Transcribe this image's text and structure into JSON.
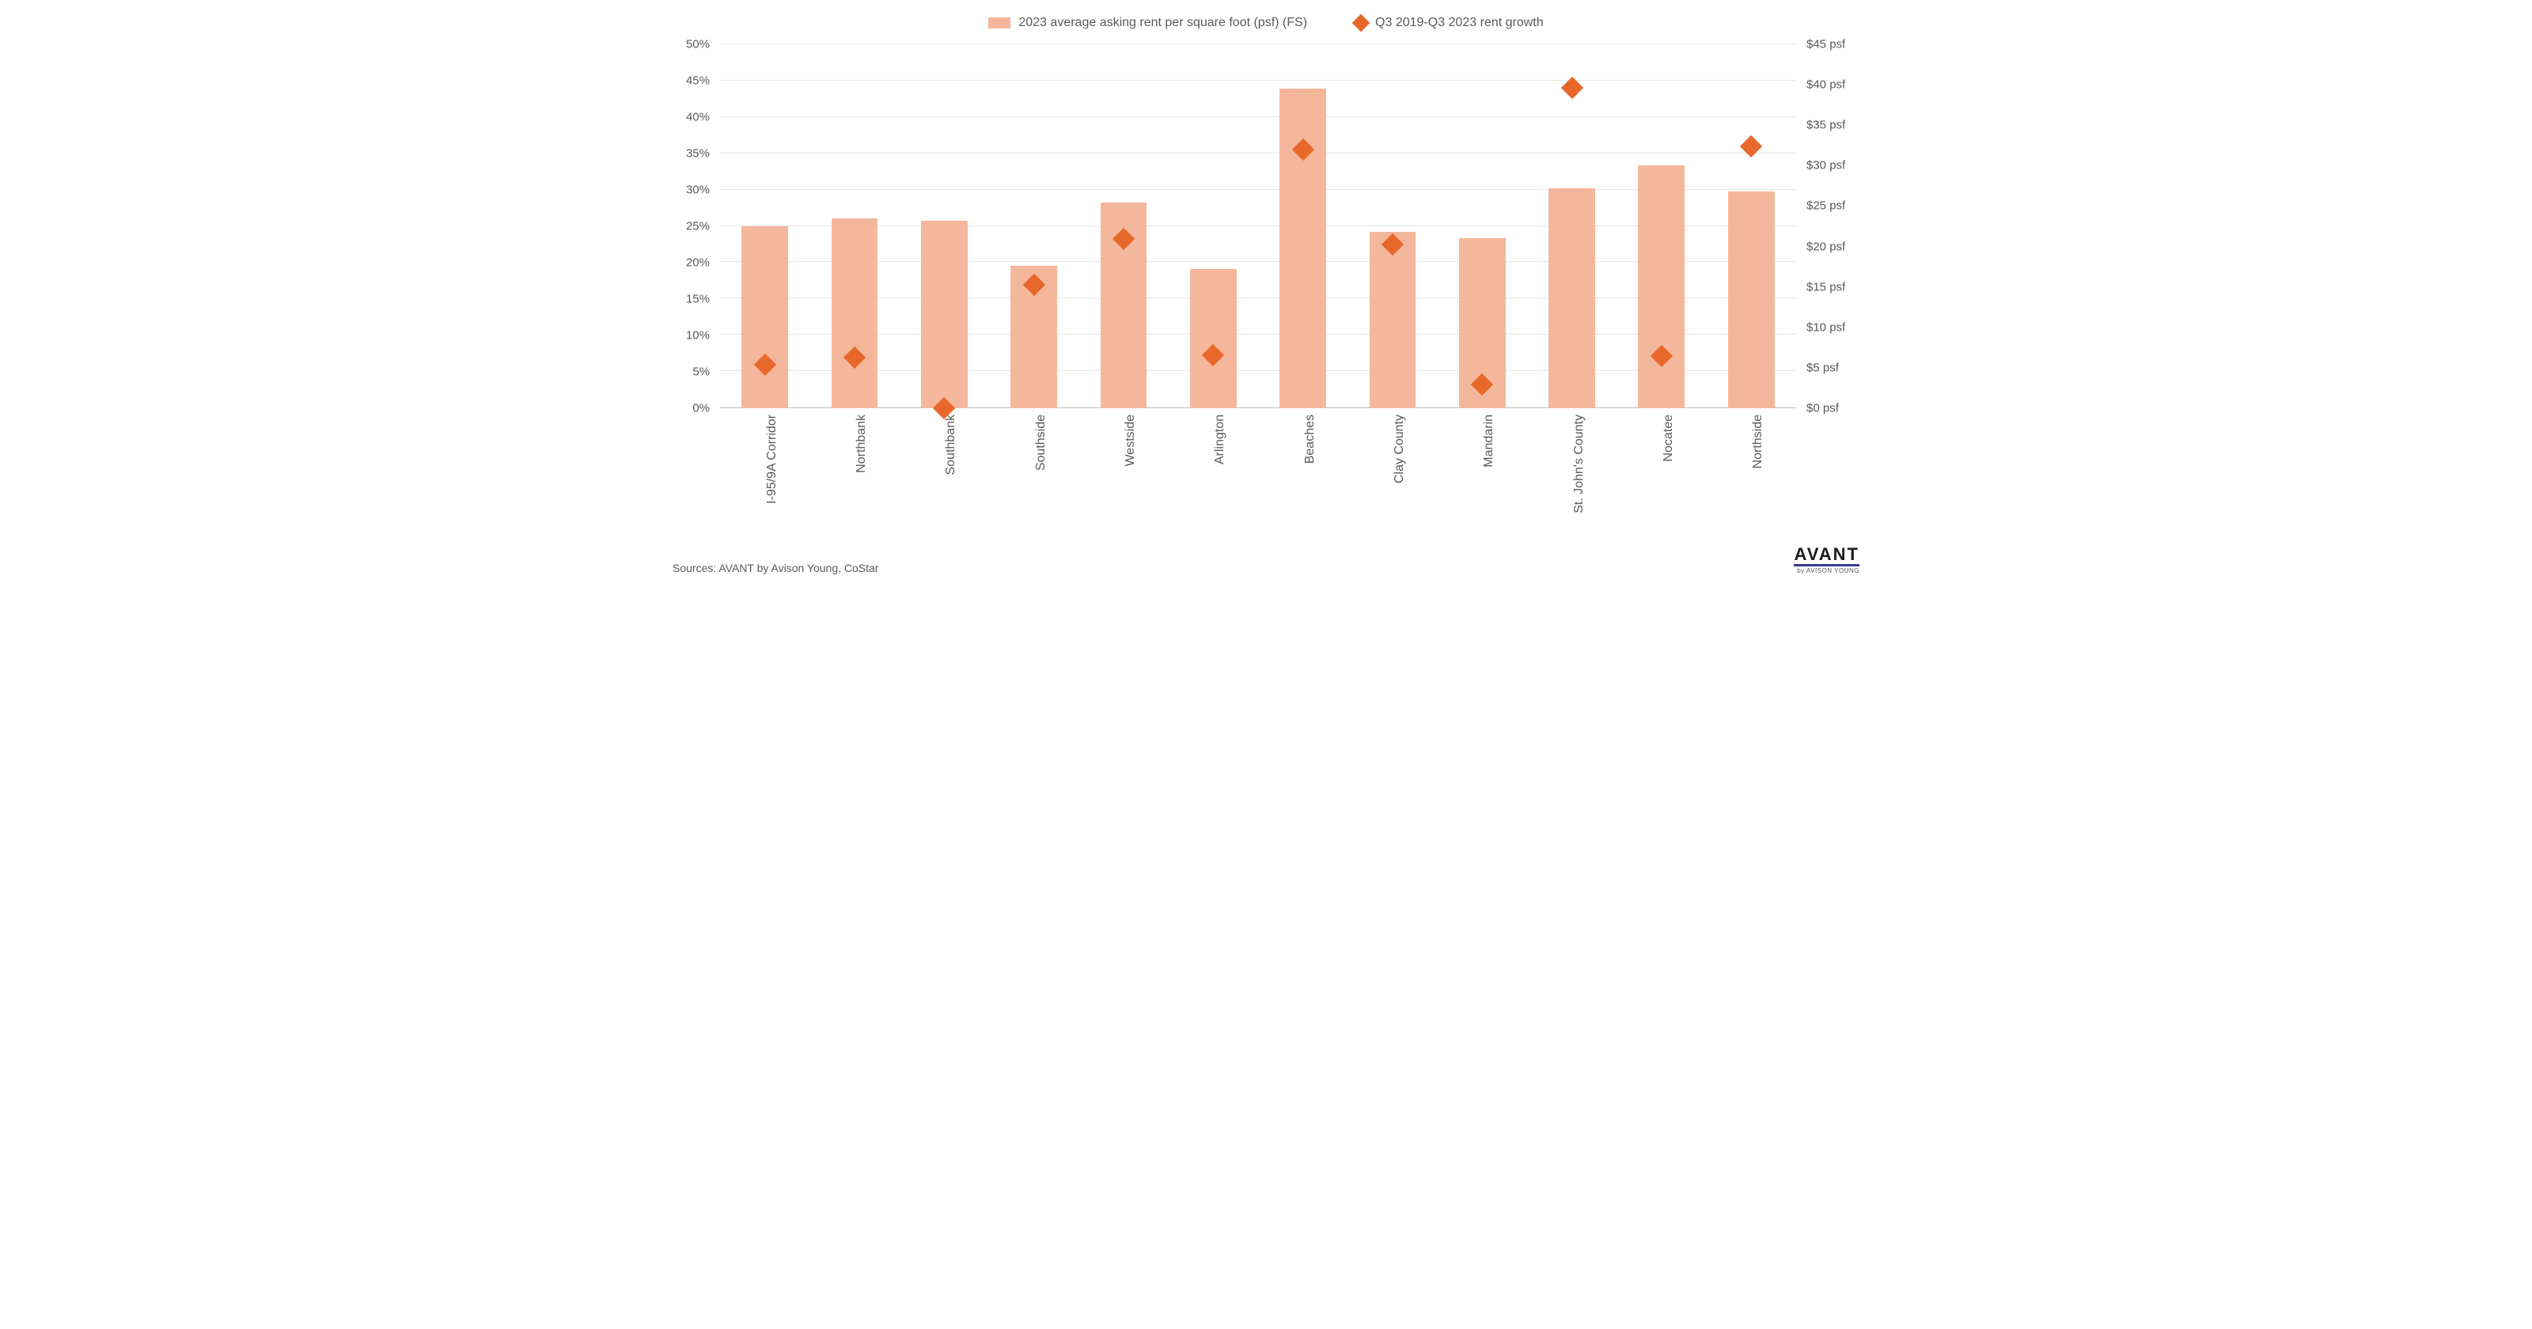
{
  "chart": {
    "type": "bar+scatter-dual-axis",
    "background_color": "#ffffff",
    "grid_color": "#e6e6e6",
    "axis_line_color": "#bfbfbf",
    "text_color": "#595959",
    "label_fontsize": 16,
    "tick_fontsize": 15,
    "legend_fontsize": 16,
    "categories": [
      "I-95/9A Corridor",
      "Northbank",
      "Southbank",
      "Southside",
      "Westside",
      "Arlington",
      "Beaches",
      "Clay County",
      "Mandarin",
      "St. John's County",
      "Nocatee",
      "Northside"
    ],
    "series_bar": {
      "label": "2023 average asking rent per square foot (psf) (FS)",
      "color": "#f5b79b",
      "axis": "right",
      "bar_width": 0.52,
      "values_psf": [
        22.5,
        23.5,
        23.2,
        17.6,
        25.4,
        17.2,
        39.5,
        21.8,
        21.0,
        27.2,
        30.0,
        26.8
      ]
    },
    "series_diamond": {
      "label": "Q3 2019-Q3 2023 rent growth",
      "color": "#e8682c",
      "marker": "diamond",
      "marker_size": 20,
      "axis": "left",
      "values_pct": [
        6.0,
        7.0,
        0.0,
        17.0,
        23.3,
        7.3,
        35.5,
        22.5,
        3.3,
        44.0,
        7.2,
        36.0
      ]
    },
    "y_left": {
      "min": 0,
      "max": 50,
      "step": 5,
      "format": "pct",
      "ticks": [
        "0%",
        "5%",
        "10%",
        "15%",
        "20%",
        "25%",
        "30%",
        "35%",
        "40%",
        "45%",
        "50%"
      ]
    },
    "y_right": {
      "min": 0,
      "max": 45,
      "step": 5,
      "format": "psf",
      "ticks": [
        "$0 psf",
        "$5 psf",
        "$10 psf",
        "$15 psf",
        "$20 psf",
        "$25 psf",
        "$30 psf",
        "$35 psf",
        "$40 psf",
        "$45 psf"
      ]
    }
  },
  "footer": {
    "source": "Sources: AVANT by Avison Young, CoStar",
    "brand_main": "AVANT",
    "brand_sub": "by AVISON YOUNG"
  }
}
